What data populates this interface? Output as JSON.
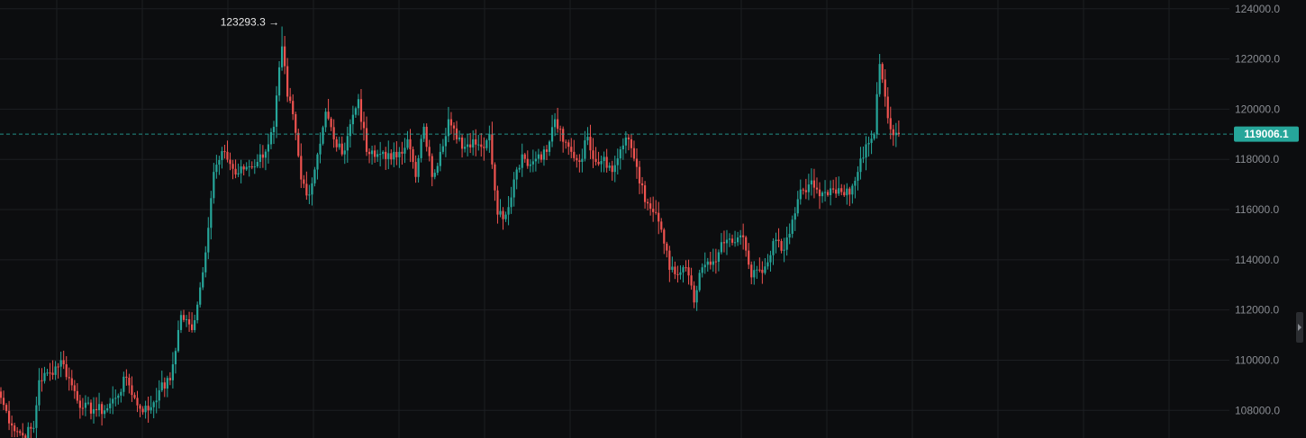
{
  "chart_data": {
    "type": "candlestick",
    "title": "",
    "xlabel": "",
    "ylabel": "",
    "ylim": [
      106900,
      124350
    ],
    "y_ticks": [
      "108000.0",
      "110000.0",
      "112000.0",
      "114000.0",
      "116000.0",
      "118000.0",
      "120000.0",
      "122000.0",
      "124000.0"
    ],
    "high_annotation": {
      "value": 123293.3,
      "label": "123293.3 →"
    },
    "last_price": {
      "value": 119006.1,
      "label": "119006.1"
    },
    "grid": true,
    "colors": {
      "up": "#26a69a",
      "down": "#ef5350",
      "background": "#0c0d0f",
      "grid": "#1c1e22",
      "axis_text": "#8a8d93",
      "price_badge": "#26a69a"
    },
    "anchors": [
      [
        0,
        108500
      ],
      [
        4,
        107400
      ],
      [
        8,
        107000
      ],
      [
        12,
        107300
      ],
      [
        14,
        109200
      ],
      [
        18,
        109500
      ],
      [
        22,
        110000
      ],
      [
        26,
        109000
      ],
      [
        30,
        108100
      ],
      [
        34,
        108050
      ],
      [
        38,
        108000
      ],
      [
        42,
        108500
      ],
      [
        46,
        109300
      ],
      [
        50,
        108200
      ],
      [
        54,
        108000
      ],
      [
        58,
        108800
      ],
      [
        62,
        109200
      ],
      [
        66,
        111800
      ],
      [
        70,
        111200
      ],
      [
        74,
        113500
      ],
      [
        78,
        117500
      ],
      [
        82,
        118300
      ],
      [
        86,
        117400
      ],
      [
        90,
        117700
      ],
      [
        94,
        117900
      ],
      [
        98,
        118600
      ],
      [
        100,
        119300
      ],
      [
        103,
        122500
      ],
      [
        105,
        120500
      ],
      [
        107,
        119800
      ],
      [
        110,
        117200
      ],
      [
        113,
        116600
      ],
      [
        116,
        118200
      ],
      [
        119,
        119900
      ],
      [
        122,
        118800
      ],
      [
        125,
        118200
      ],
      [
        128,
        119400
      ],
      [
        131,
        120400
      ],
      [
        134,
        118300
      ],
      [
        137,
        118100
      ],
      [
        140,
        118300
      ],
      [
        143,
        118000
      ],
      [
        146,
        118300
      ],
      [
        149,
        118800
      ],
      [
        152,
        117300
      ],
      [
        155,
        119300
      ],
      [
        158,
        117300
      ],
      [
        161,
        118300
      ],
      [
        164,
        119600
      ],
      [
        167,
        118800
      ],
      [
        170,
        118500
      ],
      [
        173,
        118800
      ],
      [
        176,
        118500
      ],
      [
        179,
        119000
      ],
      [
        182,
        115800
      ],
      [
        185,
        115800
      ],
      [
        188,
        117200
      ],
      [
        191,
        118200
      ],
      [
        194,
        117800
      ],
      [
        197,
        118200
      ],
      [
        200,
        118300
      ],
      [
        203,
        119600
      ],
      [
        206,
        118700
      ],
      [
        209,
        118300
      ],
      [
        212,
        117900
      ],
      [
        215,
        118900
      ],
      [
        218,
        117900
      ],
      [
        221,
        118100
      ],
      [
        224,
        117500
      ],
      [
        227,
        118400
      ],
      [
        230,
        118800
      ],
      [
        233,
        117700
      ],
      [
        236,
        116300
      ],
      [
        239,
        115900
      ],
      [
        242,
        115200
      ],
      [
        245,
        113600
      ],
      [
        248,
        113400
      ],
      [
        251,
        113700
      ],
      [
        254,
        112300
      ],
      [
        257,
        113700
      ],
      [
        260,
        113800
      ],
      [
        263,
        114300
      ],
      [
        266,
        114800
      ],
      [
        269,
        114700
      ],
      [
        272,
        114900
      ],
      [
        275,
        113300
      ],
      [
        278,
        113600
      ],
      [
        281,
        113900
      ],
      [
        284,
        114800
      ],
      [
        287,
        114400
      ],
      [
        290,
        115600
      ],
      [
        293,
        116800
      ],
      [
        296,
        117000
      ],
      [
        299,
        116800
      ],
      [
        302,
        116700
      ],
      [
        305,
        116800
      ],
      [
        308,
        116700
      ],
      [
        311,
        116600
      ],
      [
        314,
        117500
      ],
      [
        317,
        118600
      ],
      [
        320,
        119000
      ],
      [
        322,
        121800
      ],
      [
        324,
        120500
      ],
      [
        326,
        119200
      ],
      [
        329,
        119000
      ]
    ]
  }
}
